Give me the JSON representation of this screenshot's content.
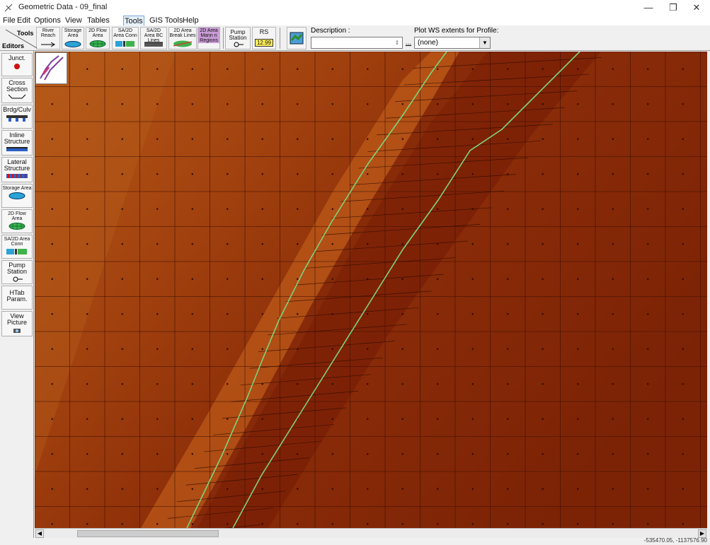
{
  "window": {
    "title": "Geometric Data - 09_final",
    "minimize": "—",
    "restore": "❐",
    "close": "✕"
  },
  "menu": {
    "file": "File",
    "edit": "Edit",
    "options": "Options",
    "view": "View",
    "tables": "Tables",
    "tools": "Tools",
    "gis_tools": "GIS Tools",
    "help": "Help"
  },
  "toolbar": {
    "tools_label": "Tools",
    "editors_label": "Editors",
    "river_reach": "River Reach",
    "storage_area": "Storage Area",
    "flow2d_area": "2D Flow Area",
    "sa2d_conn": "SA/2D Area Conn",
    "sa2d_bc_lines": "SA/2D Area BC Lines",
    "breaklines": "2D Area Break Lines",
    "mannings_regions": "2D Area Mann n Regions",
    "pump_station": "Pump Station",
    "rs_label": "RS",
    "rs_value": "12.99",
    "description_label": "Description :",
    "description_value": "",
    "description_browse": "...",
    "plot_ws_label": "Plot WS extents for Profile:",
    "plot_ws_value": "(none)"
  },
  "editors": [
    {
      "key": "junct",
      "label": "Junct."
    },
    {
      "key": "cross-section",
      "label": "Cross Section"
    },
    {
      "key": "brdg-culv",
      "label": "Brdg/Culv"
    },
    {
      "key": "inline-structure",
      "label": "Inline Structure"
    },
    {
      "key": "lateral-structure",
      "label": "Lateral Structure"
    },
    {
      "key": "storage-area",
      "label": "Storage Area"
    },
    {
      "key": "flow2d-area",
      "label": "2D Flow Area"
    },
    {
      "key": "sa2d-conn",
      "label": "SA/2D Area Conn"
    },
    {
      "key": "pump-station",
      "label": "Pump Station"
    },
    {
      "key": "htab-param",
      "label": "HTab Param."
    },
    {
      "key": "view-picture",
      "label": "View Picture"
    }
  ],
  "status": {
    "coordinates": "-535470.05, -1137576.90"
  },
  "colors": {
    "terrain_low": "#7a1f05",
    "terrain_mid": "#9c3a0c",
    "terrain_high": "#c0661e",
    "breakline": "#7fd37a",
    "mesh_line": "#2a0a02"
  }
}
